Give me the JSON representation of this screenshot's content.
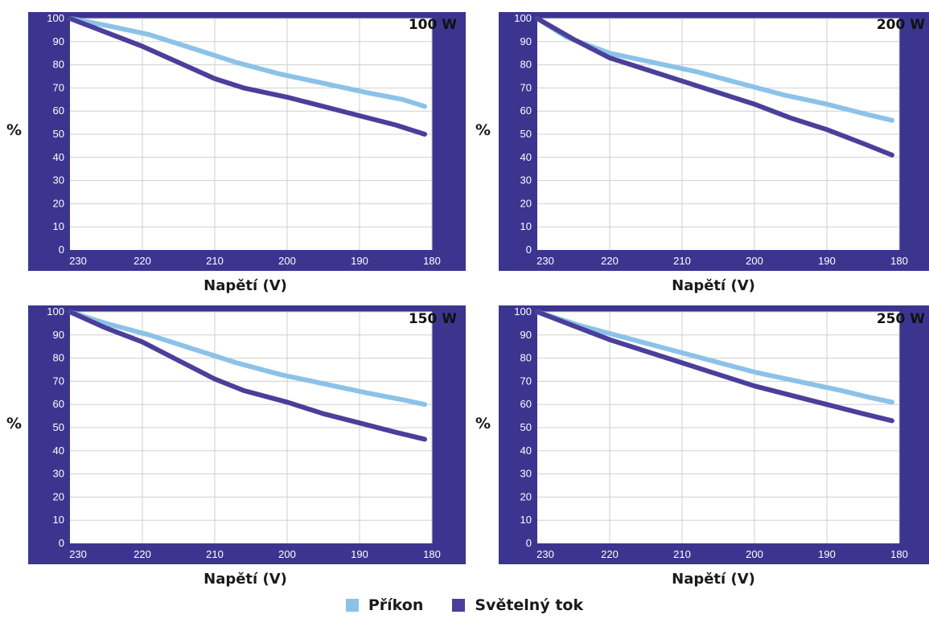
{
  "colors": {
    "frame": "#3c3590",
    "prikon": "#8cc2e8",
    "svetelny_tok": "#4a3f9a",
    "grid": "#cfcfcf"
  },
  "legend": {
    "items": [
      {
        "name": "Příkon",
        "color": "#8cc2e8"
      },
      {
        "name": "Světelný tok",
        "color": "#4a3f9a"
      }
    ]
  },
  "chart_data": [
    {
      "type": "line",
      "title": "100 W",
      "xlabel": "Napětí (V)",
      "ylabel": "%",
      "x_ticks": [
        "230",
        "220",
        "210",
        "200",
        "190",
        "180"
      ],
      "y_ticks": [
        "0",
        "10",
        "20",
        "30",
        "40",
        "50",
        "60",
        "70",
        "80",
        "90",
        "100"
      ],
      "xlim": [
        230,
        180
      ],
      "ylim": [
        0,
        100
      ],
      "grid": true,
      "series": [
        {
          "name": "Příkon",
          "x": [
            230,
            225,
            219,
            213,
            207,
            201,
            195,
            189,
            184,
            181
          ],
          "y": [
            100,
            97,
            93,
            87,
            81,
            76,
            72,
            68,
            65,
            62
          ]
        },
        {
          "name": "Světelný tok",
          "x": [
            230,
            225,
            220,
            215,
            210,
            206,
            200,
            195,
            190,
            185,
            181
          ],
          "y": [
            100,
            94,
            88,
            81,
            74,
            70,
            66,
            62,
            58,
            54,
            50
          ]
        }
      ]
    },
    {
      "type": "line",
      "title": "200 W",
      "xlabel": "Napětí (V)",
      "ylabel": "%",
      "x_ticks": [
        "230",
        "220",
        "210",
        "200",
        "190",
        "180"
      ],
      "y_ticks": [
        "0",
        "10",
        "20",
        "30",
        "40",
        "50",
        "60",
        "70",
        "80",
        "90",
        "100"
      ],
      "xlim": [
        230,
        180
      ],
      "ylim": [
        0,
        100
      ],
      "grid": true,
      "series": [
        {
          "name": "Příkon",
          "x": [
            230,
            226,
            220,
            214,
            208,
            202,
            196,
            190,
            185,
            181
          ],
          "y": [
            100,
            92,
            85,
            81,
            77,
            72,
            67,
            63,
            59,
            56
          ]
        },
        {
          "name": "Světelný tok",
          "x": [
            230,
            225,
            220,
            215,
            210,
            205,
            200,
            195,
            190,
            185,
            181
          ],
          "y": [
            100,
            91,
            83,
            78,
            73,
            68,
            63,
            57,
            52,
            46,
            41
          ]
        }
      ]
    },
    {
      "type": "line",
      "title": "150 W",
      "xlabel": "Napětí (V)",
      "ylabel": "%",
      "x_ticks": [
        "230",
        "220",
        "210",
        "200",
        "190",
        "180"
      ],
      "y_ticks": [
        "0",
        "10",
        "20",
        "30",
        "40",
        "50",
        "60",
        "70",
        "80",
        "90",
        "100"
      ],
      "xlim": [
        230,
        180
      ],
      "ylim": [
        0,
        100
      ],
      "grid": true,
      "series": [
        {
          "name": "Příkon",
          "x": [
            230,
            225,
            219,
            213,
            207,
            201,
            195,
            189,
            184,
            181
          ],
          "y": [
            100,
            95,
            90,
            84,
            78,
            73,
            69,
            65,
            62,
            60
          ]
        },
        {
          "name": "Světelný tok",
          "x": [
            230,
            225,
            220,
            215,
            210,
            206,
            200,
            195,
            190,
            185,
            181
          ],
          "y": [
            100,
            93,
            87,
            79,
            71,
            66,
            61,
            56,
            52,
            48,
            45
          ]
        }
      ]
    },
    {
      "type": "line",
      "title": "250 W",
      "xlabel": "Napětí (V)",
      "ylabel": "%",
      "x_ticks": [
        "230",
        "220",
        "210",
        "200",
        "190",
        "180"
      ],
      "y_ticks": [
        "0",
        "10",
        "20",
        "30",
        "40",
        "50",
        "60",
        "70",
        "80",
        "90",
        "100"
      ],
      "xlim": [
        230,
        180
      ],
      "ylim": [
        0,
        100
      ],
      "grid": true,
      "series": [
        {
          "name": "Příkon",
          "x": [
            230,
            224,
            218,
            212,
            206,
            200,
            194,
            188,
            184,
            181
          ],
          "y": [
            100,
            94,
            89,
            84,
            79,
            74,
            70,
            66,
            63,
            61
          ]
        },
        {
          "name": "Světelný tok",
          "x": [
            230,
            225,
            220,
            215,
            210,
            205,
            200,
            195,
            190,
            185,
            181
          ],
          "y": [
            100,
            94,
            88,
            83,
            78,
            73,
            68,
            64,
            60,
            56,
            53
          ]
        }
      ]
    }
  ]
}
